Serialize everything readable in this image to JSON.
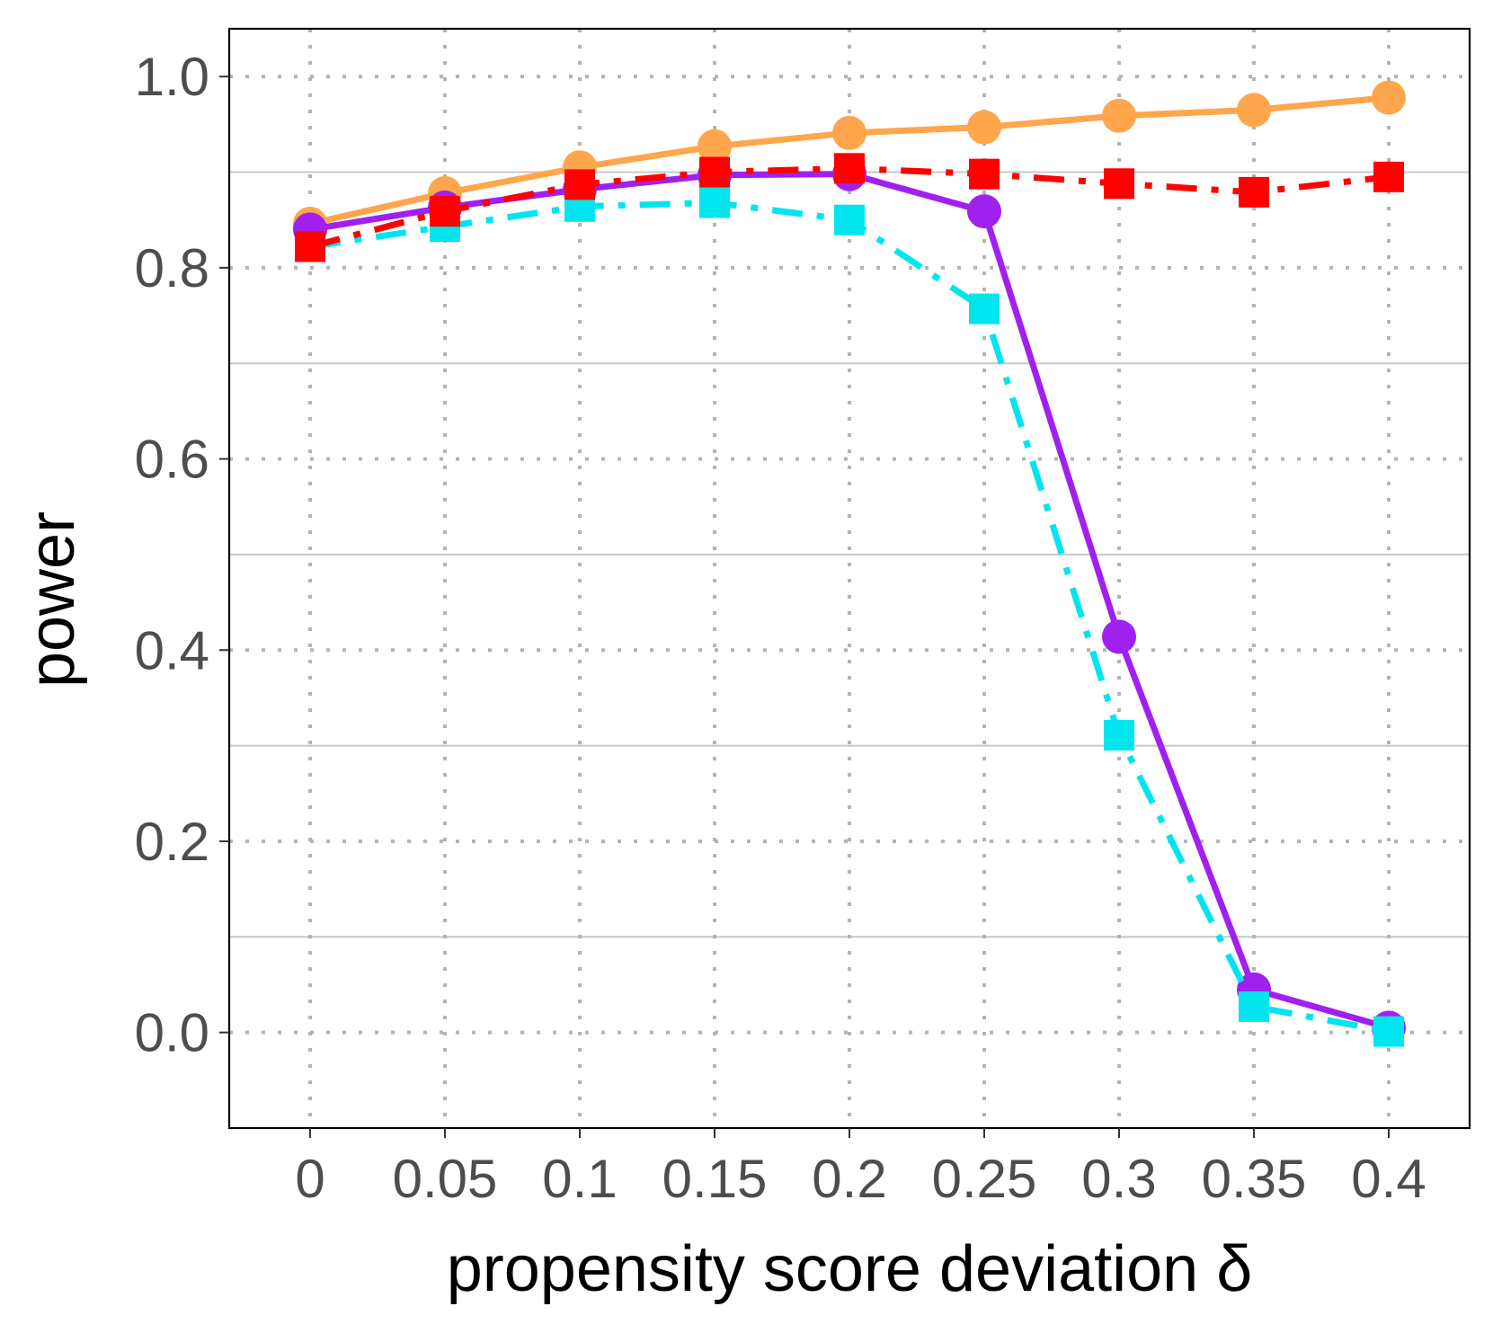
{
  "chart_data": {
    "type": "line",
    "title": "",
    "xlabel": "propensity score deviation δ",
    "ylabel": "power",
    "x": [
      0,
      0.05,
      0.1,
      0.15,
      0.2,
      0.25,
      0.3,
      0.35,
      0.4
    ],
    "x_tick_labels": [
      "0",
      "0.05",
      "0.1",
      "0.15",
      "0.2",
      "0.25",
      "0.3",
      "0.35",
      "0.4"
    ],
    "y_ticks": [
      0.0,
      0.2,
      0.4,
      0.6,
      0.8,
      1.0
    ],
    "y_tick_labels": [
      "0.0",
      "0.2",
      "0.4",
      "0.6",
      "0.8",
      "1.0"
    ],
    "y_minor_grid": [
      0.1,
      0.3,
      0.5,
      0.7,
      0.9
    ],
    "xlim": [
      -0.03,
      0.43
    ],
    "ylim": [
      -0.1,
      1.05
    ],
    "grid": true,
    "legend": "none",
    "series": [
      {
        "name": "orange-circle-solid",
        "color": "#FFA64D",
        "marker": "circle",
        "linestyle": "solid",
        "values": [
          0.846,
          0.878,
          0.905,
          0.927,
          0.941,
          0.947,
          0.959,
          0.965,
          0.978
        ]
      },
      {
        "name": "purple-circle-solid",
        "color": "#A020F0",
        "marker": "circle",
        "linestyle": "solid",
        "values": [
          0.84,
          0.863,
          0.882,
          0.897,
          0.898,
          0.859,
          0.414,
          0.045,
          0.005
        ]
      },
      {
        "name": "cyan-square-dashdot",
        "color": "#00E5EE",
        "marker": "square",
        "linestyle": "dashdot",
        "values": [
          0.822,
          0.843,
          0.864,
          0.868,
          0.85,
          0.757,
          0.311,
          0.027,
          0.001
        ]
      },
      {
        "name": "red-square-dashdot",
        "color": "#FF0000",
        "marker": "square",
        "linestyle": "dashdot",
        "values": [
          0.822,
          0.859,
          0.887,
          0.9,
          0.904,
          0.898,
          0.888,
          0.879,
          0.895
        ]
      }
    ]
  }
}
